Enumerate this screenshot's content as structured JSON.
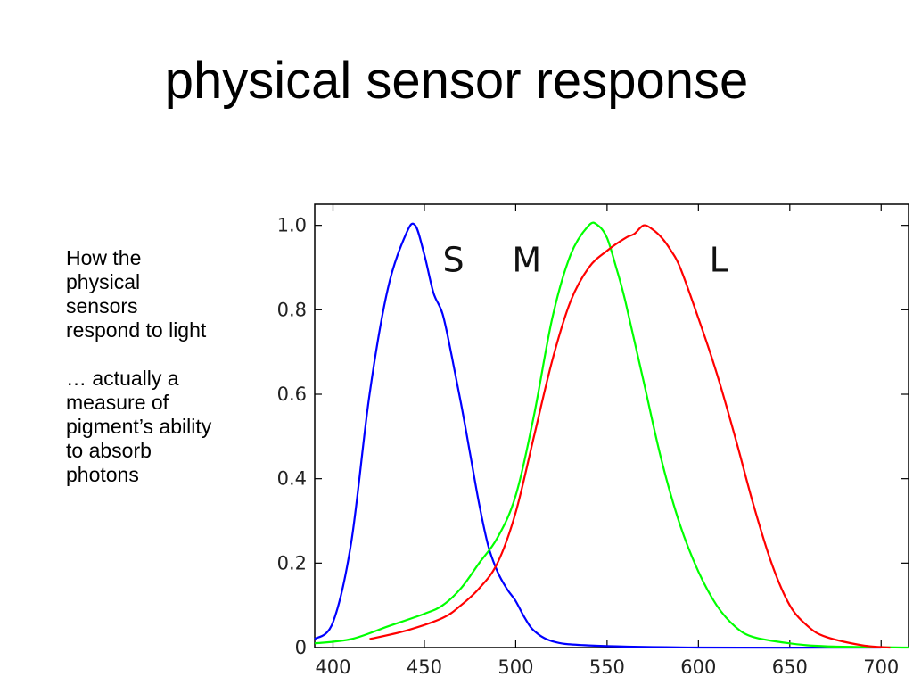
{
  "slide": {
    "title": "physical sensor response",
    "paragraphs": [
      "How the physical sensors respond to light",
      "… actually a measure of pigment’s ability to absorb photons"
    ]
  },
  "chart_data": {
    "type": "line",
    "title": "",
    "xlabel": "",
    "ylabel": "",
    "xlim": [
      390,
      715
    ],
    "ylim": [
      0,
      1.05
    ],
    "x_ticks": [
      400,
      450,
      500,
      550,
      600,
      650,
      700
    ],
    "x_tick_labels": [
      "400",
      "450",
      "500",
      "550",
      "600",
      "650",
      "700"
    ],
    "y_ticks": [
      0,
      0.2,
      0.4,
      0.6,
      0.8,
      1.0
    ],
    "y_tick_labels": [
      "0",
      "0.2",
      "0.4",
      "0.6",
      "0.8",
      "1.0"
    ],
    "grid": false,
    "annotations": [
      {
        "text": "S",
        "x": 460,
        "y": 0.92
      },
      {
        "text": "M",
        "x": 498,
        "y": 0.92
      },
      {
        "text": "L",
        "x": 606,
        "y": 0.92
      }
    ],
    "series": [
      {
        "name": "S",
        "color": "#0000ff",
        "points": [
          [
            390,
            0.02
          ],
          [
            400,
            0.06
          ],
          [
            410,
            0.25
          ],
          [
            420,
            0.6
          ],
          [
            430,
            0.85
          ],
          [
            440,
            0.98
          ],
          [
            445,
            1.0
          ],
          [
            450,
            0.93
          ],
          [
            455,
            0.84
          ],
          [
            460,
            0.79
          ],
          [
            465,
            0.69
          ],
          [
            470,
            0.58
          ],
          [
            475,
            0.46
          ],
          [
            480,
            0.34
          ],
          [
            485,
            0.24
          ],
          [
            490,
            0.18
          ],
          [
            495,
            0.14
          ],
          [
            500,
            0.11
          ],
          [
            505,
            0.07
          ],
          [
            510,
            0.04
          ],
          [
            520,
            0.015
          ],
          [
            540,
            0.005
          ],
          [
            600,
            0.0
          ],
          [
            700,
            0.0
          ]
        ]
      },
      {
        "name": "M",
        "color": "#00ff00",
        "points": [
          [
            390,
            0.01
          ],
          [
            410,
            0.02
          ],
          [
            430,
            0.05
          ],
          [
            450,
            0.08
          ],
          [
            460,
            0.1
          ],
          [
            470,
            0.14
          ],
          [
            480,
            0.2
          ],
          [
            490,
            0.26
          ],
          [
            500,
            0.36
          ],
          [
            510,
            0.55
          ],
          [
            520,
            0.78
          ],
          [
            530,
            0.93
          ],
          [
            540,
            1.0
          ],
          [
            545,
            1.0
          ],
          [
            550,
            0.97
          ],
          [
            555,
            0.9
          ],
          [
            560,
            0.82
          ],
          [
            570,
            0.63
          ],
          [
            580,
            0.44
          ],
          [
            590,
            0.29
          ],
          [
            600,
            0.18
          ],
          [
            610,
            0.1
          ],
          [
            620,
            0.05
          ],
          [
            630,
            0.025
          ],
          [
            650,
            0.01
          ],
          [
            670,
            0.003
          ],
          [
            715,
            0.0
          ]
        ]
      },
      {
        "name": "L",
        "color": "#ff0000",
        "points": [
          [
            420,
            0.02
          ],
          [
            440,
            0.04
          ],
          [
            460,
            0.07
          ],
          [
            470,
            0.1
          ],
          [
            480,
            0.14
          ],
          [
            490,
            0.2
          ],
          [
            500,
            0.32
          ],
          [
            510,
            0.5
          ],
          [
            520,
            0.68
          ],
          [
            530,
            0.82
          ],
          [
            540,
            0.9
          ],
          [
            550,
            0.94
          ],
          [
            560,
            0.97
          ],
          [
            565,
            0.98
          ],
          [
            570,
            1.0
          ],
          [
            575,
            0.99
          ],
          [
            580,
            0.97
          ],
          [
            585,
            0.94
          ],
          [
            590,
            0.9
          ],
          [
            600,
            0.78
          ],
          [
            610,
            0.65
          ],
          [
            620,
            0.5
          ],
          [
            630,
            0.34
          ],
          [
            640,
            0.2
          ],
          [
            650,
            0.1
          ],
          [
            660,
            0.05
          ],
          [
            670,
            0.025
          ],
          [
            690,
            0.005
          ],
          [
            705,
            0.0
          ]
        ]
      }
    ]
  }
}
